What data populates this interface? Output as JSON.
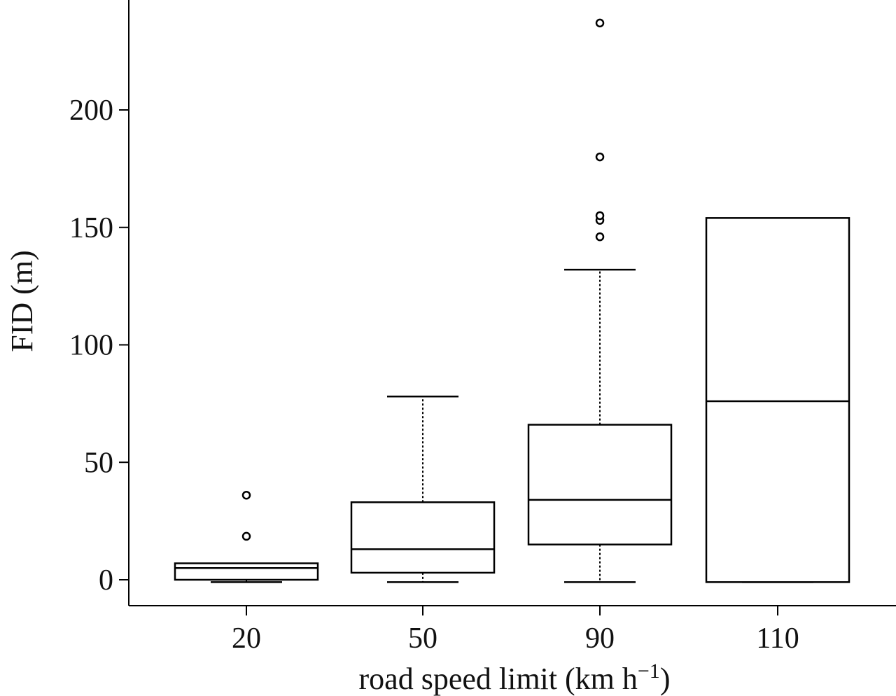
{
  "chart_data": {
    "type": "boxplot",
    "title": "",
    "xlabel": "road speed limit (km h",
    "xlabel_superscript": "−1",
    "xlabel_close": ")",
    "ylabel": "FID (m)",
    "ylim": [
      -10,
      245
    ],
    "yticks": [
      0,
      50,
      100,
      150,
      200
    ],
    "grid": false,
    "categories": [
      "20",
      "50",
      "90",
      "110"
    ],
    "boxes": [
      {
        "category": "20",
        "whisker_low": -1,
        "q1": 0,
        "median": 5,
        "q3": 7,
        "whisker_high": 7,
        "outliers": [
          18.5,
          36
        ]
      },
      {
        "category": "50",
        "whisker_low": -1,
        "q1": 3,
        "median": 13,
        "q3": 33,
        "whisker_high": 78,
        "outliers": []
      },
      {
        "category": "90",
        "whisker_low": -1,
        "q1": 15,
        "median": 34,
        "q3": 66,
        "whisker_high": 132,
        "outliers": [
          146,
          153,
          155,
          180,
          237
        ]
      },
      {
        "category": "110",
        "whisker_low": -1,
        "q1": -1,
        "median": 76,
        "q3": 154,
        "whisker_high": 154,
        "outliers": []
      }
    ]
  }
}
